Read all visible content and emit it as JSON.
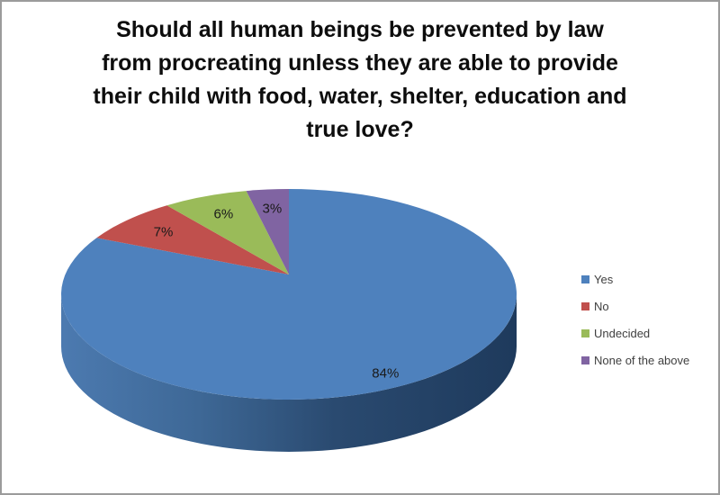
{
  "window": {
    "background": "#ffffff",
    "border_color": "#9b9b9b"
  },
  "title": {
    "full": "Should all human beings be prevented by law from procreating unless they are able to provide their child with food, water, shelter, education and true love?",
    "lines": [
      "Should all human beings be prevented by law",
      "from procreating unless they are able to provide",
      "their child with food, water, shelter, education and",
      "true love?"
    ]
  },
  "chart_data": {
    "type": "pie",
    "style": "3d-exploded-none",
    "title": "Should all human beings be prevented by law from procreating unless they are able to provide their child with food, water, shelter, education and true love?",
    "categories": [
      "Yes",
      "No",
      "Undecided",
      "None of the above"
    ],
    "values": [
      84,
      7,
      6,
      3
    ],
    "unit": "percent",
    "data_labels": [
      "84%",
      "7%",
      "6%",
      "3%"
    ],
    "colors": [
      "#4E81BD",
      "#C0504D",
      "#9ABB59",
      "#8064A2"
    ],
    "side_gradient": [
      "#4C7AB0",
      "#3E6896",
      "#2A4A70",
      "#1E3A5C"
    ],
    "label_color": "#1a1a1a",
    "start_angle_deg": -90,
    "direction": "clockwise",
    "legend_position": "right",
    "grid": false
  },
  "legend": {
    "items": [
      {
        "label": "Yes",
        "color": "#4E81BD"
      },
      {
        "label": "No",
        "color": "#C0504D"
      },
      {
        "label": "Undecided",
        "color": "#9ABB59"
      },
      {
        "label": "None of the above",
        "color": "#8064A2"
      }
    ]
  }
}
